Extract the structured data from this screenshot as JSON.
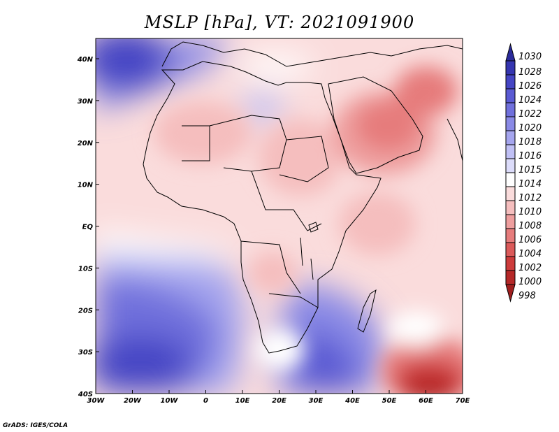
{
  "title": "MSLP [hPa], VT: 2021091900",
  "credit": "GrADS: IGES/COLA",
  "x_ticks": [
    "30W",
    "20W",
    "10W",
    "0",
    "10E",
    "20E",
    "30E",
    "40E",
    "50E",
    "60E",
    "70E"
  ],
  "y_ticks": [
    "40N",
    "30N",
    "20N",
    "10N",
    "EQ",
    "10S",
    "20S",
    "30S",
    "40S"
  ],
  "map_extent": {
    "lon": [
      -30,
      75
    ],
    "lat": [
      -40,
      45
    ]
  },
  "colorbar": {
    "levels": [
      "1030",
      "1028",
      "1026",
      "1024",
      "1022",
      "1020",
      "1018",
      "1016",
      "1015",
      "1014",
      "1012",
      "1010",
      "1008",
      "1006",
      "1004",
      "1002",
      "1000",
      "998"
    ],
    "colors": [
      "#2b2b9a",
      "#3535b0",
      "#4545c4",
      "#5a5ad3",
      "#7070dc",
      "#8a8ae6",
      "#a5a5ee",
      "#c0c0f5",
      "#dcdcfa",
      "#ffffff",
      "#fadcdc",
      "#f5bebe",
      "#ee9e9e",
      "#e67c7c",
      "#db5a5a",
      "#cd3c3c",
      "#b52828",
      "#a01e1e"
    ]
  }
}
